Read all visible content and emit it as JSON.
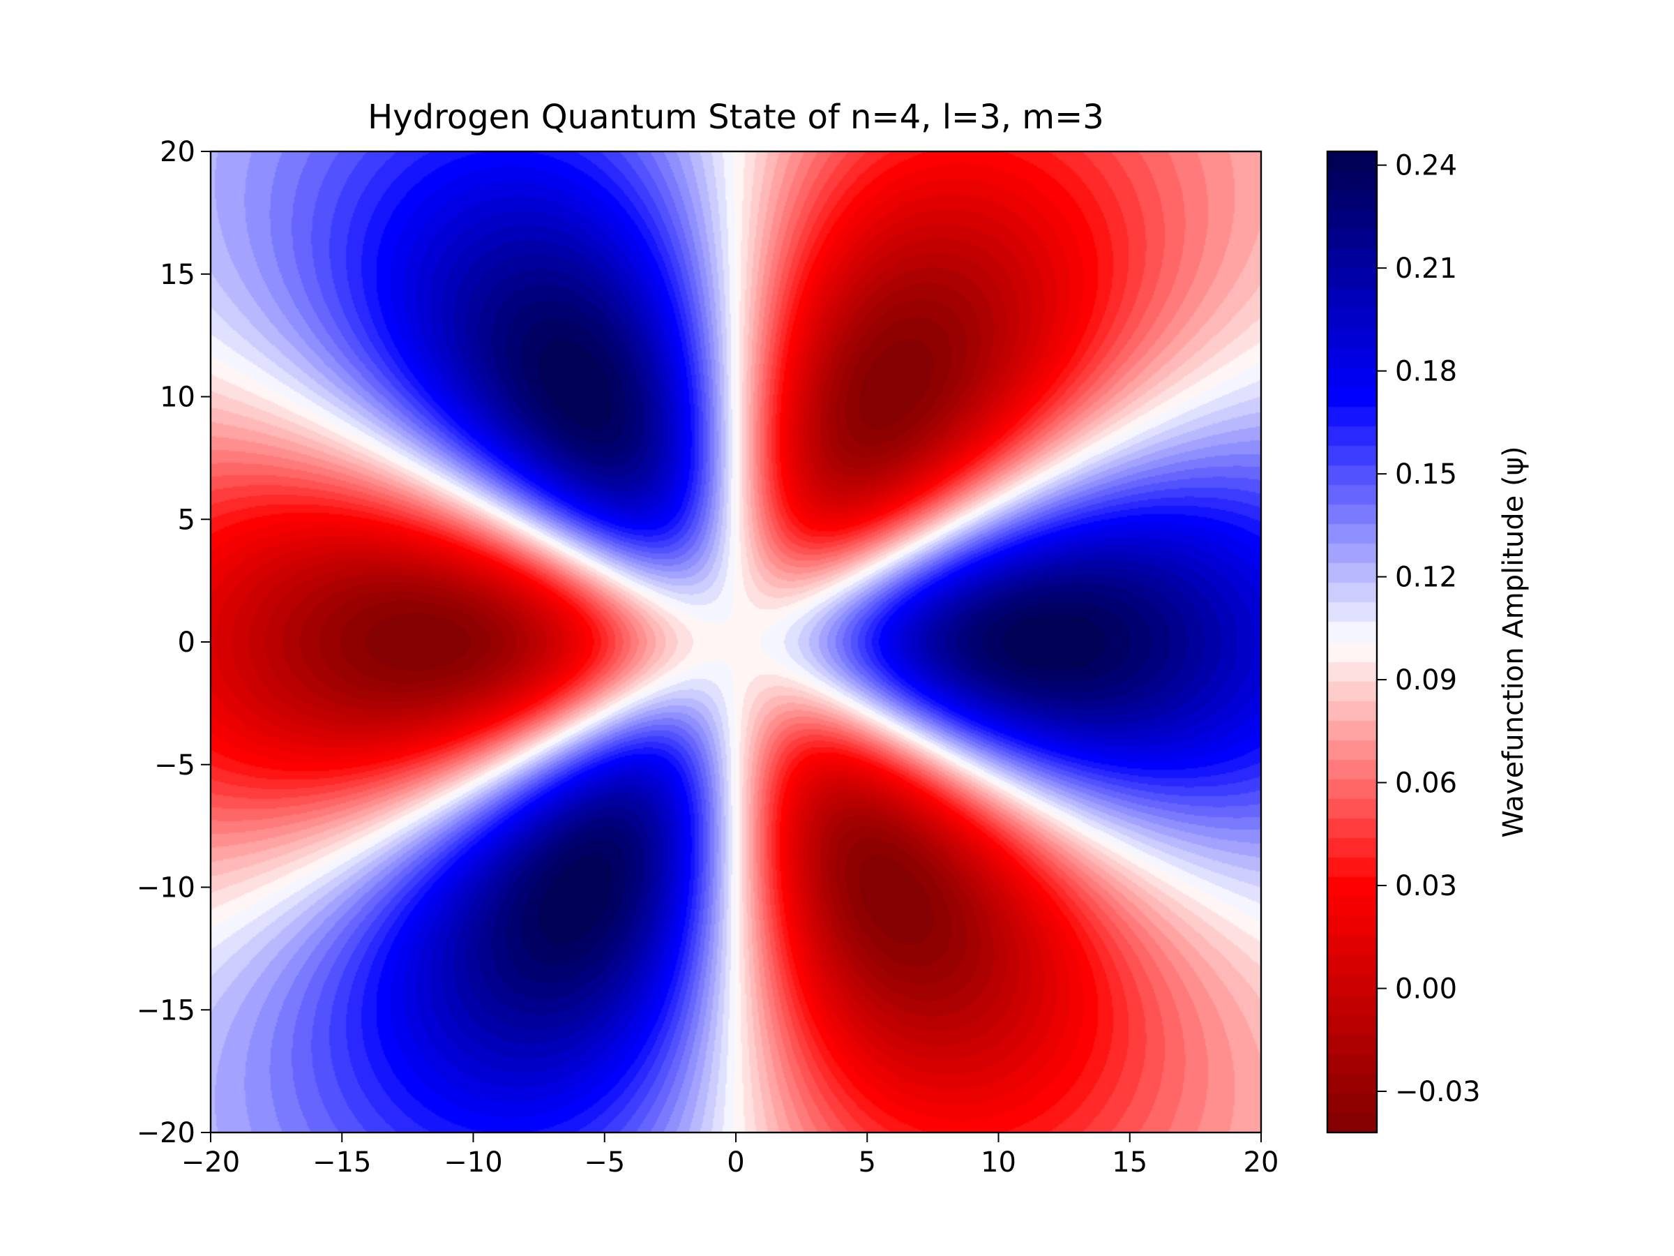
{
  "chart_data": {
    "type": "heatmap",
    "title": "Hydrogen Quantum State of n=4, l=3, m=3",
    "xlabel": "",
    "ylabel": "",
    "xlim": [
      -20,
      20
    ],
    "ylim": [
      -20,
      20
    ],
    "x_ticks": [
      -20,
      -15,
      -10,
      -5,
      0,
      5,
      10,
      15,
      20
    ],
    "y_ticks": [
      -20,
      -15,
      -10,
      -5,
      0,
      5,
      10,
      15,
      20
    ],
    "x_tick_labels": [
      "−20",
      "−15",
      "−10",
      "−5",
      "0",
      "5",
      "10",
      "15",
      "20"
    ],
    "y_tick_labels": [
      "−20",
      "−15",
      "−10",
      "−5",
      "0",
      "5",
      "10",
      "15",
      "20"
    ],
    "grid": false,
    "colormap": "seismic_r",
    "color_low": "#800000",
    "color_mid": "#ffffff",
    "color_high": "#00004c",
    "contour_levels": 50,
    "colorbar": {
      "label": "Wavefunction Amplitude (ψ)",
      "range": [
        -0.042,
        0.244
      ],
      "ticks": [
        -0.03,
        0.0,
        0.03,
        0.06,
        0.09,
        0.12,
        0.15,
        0.18,
        0.21,
        0.24
      ],
      "tick_labels": [
        "−0.03",
        "0.00",
        "0.03",
        "0.06",
        "0.09",
        "0.12",
        "0.15",
        "0.18",
        "0.21",
        "0.24"
      ]
    },
    "field": {
      "function": "r^3 * exp(-r/4) * cos(3*phi)",
      "positive_lobes": [
        {
          "x": 12.2,
          "y": 0,
          "value": 0.244
        },
        {
          "x": -6.1,
          "y": 10.5,
          "value": 0.244
        },
        {
          "x": -6.1,
          "y": -10.5,
          "value": 0.244
        }
      ],
      "negative_lobes": [
        {
          "x": -12.2,
          "y": 0,
          "value": -0.042
        },
        {
          "x": 6.1,
          "y": 10.5,
          "value": -0.042
        },
        {
          "x": 6.1,
          "y": -10.5,
          "value": -0.042
        }
      ]
    }
  }
}
